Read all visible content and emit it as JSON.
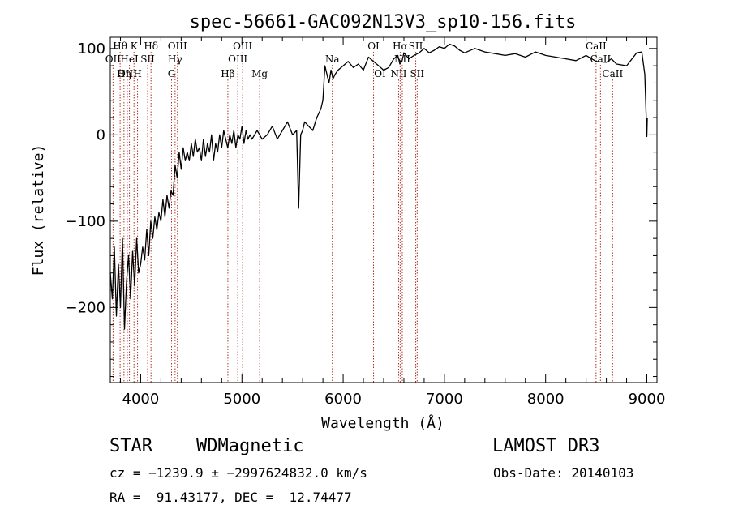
{
  "chart_data": {
    "type": "line",
    "title": "spec-56661-GAC092N13V3_sp10-156.fits",
    "xlabel": "Wavelength (Å)",
    "ylabel": "Flux (relative)",
    "xlim": [
      3700,
      9100
    ],
    "ylim": [
      -287,
      113
    ],
    "xticks": [
      4000,
      5000,
      6000,
      7000,
      8000,
      9000
    ],
    "yticks": [
      -200,
      -100,
      0,
      100
    ],
    "series": [
      {
        "name": "spectrum",
        "x": [
          3700,
          3720,
          3740,
          3760,
          3780,
          3800,
          3820,
          3840,
          3860,
          3880,
          3900,
          3920,
          3940,
          3960,
          3980,
          4000,
          4020,
          4040,
          4060,
          4080,
          4100,
          4120,
          4140,
          4160,
          4180,
          4200,
          4220,
          4240,
          4260,
          4280,
          4300,
          4320,
          4340,
          4360,
          4380,
          4400,
          4420,
          4440,
          4460,
          4480,
          4500,
          4520,
          4540,
          4560,
          4580,
          4600,
          4620,
          4640,
          4660,
          4680,
          4700,
          4720,
          4740,
          4760,
          4780,
          4800,
          4820,
          4840,
          4860,
          4880,
          4900,
          4920,
          4940,
          4960,
          4980,
          5000,
          5020,
          5040,
          5060,
          5080,
          5100,
          5150,
          5200,
          5250,
          5300,
          5350,
          5400,
          5450,
          5500,
          5540,
          5560,
          5580,
          5600,
          5620,
          5660,
          5700,
          5740,
          5780,
          5800,
          5820,
          5840,
          5860,
          5880,
          5900,
          5920,
          5950,
          6000,
          6050,
          6100,
          6150,
          6200,
          6250,
          6300,
          6350,
          6400,
          6450,
          6500,
          6540,
          6560,
          6580,
          6600,
          6650,
          6700,
          6750,
          6800,
          6850,
          6900,
          6950,
          7000,
          7050,
          7100,
          7150,
          7200,
          7300,
          7400,
          7500,
          7600,
          7700,
          7800,
          7900,
          8000,
          8100,
          8200,
          8300,
          8400,
          8500,
          8600,
          8650,
          8700,
          8800,
          8900,
          8950,
          8980,
          9000,
          9005
        ],
        "y": [
          -160,
          -190,
          -130,
          -210,
          -150,
          -200,
          -120,
          -225,
          -170,
          -140,
          -190,
          -135,
          -175,
          -120,
          -160,
          -150,
          -130,
          -145,
          -110,
          -140,
          -100,
          -120,
          -95,
          -110,
          -90,
          -100,
          -75,
          -95,
          -70,
          -85,
          -65,
          -70,
          -35,
          -50,
          -20,
          -40,
          -15,
          -30,
          -20,
          -30,
          -10,
          -25,
          -5,
          -20,
          -15,
          -30,
          -5,
          -25,
          -10,
          -20,
          0,
          -30,
          -10,
          -20,
          0,
          -15,
          5,
          -5,
          -15,
          0,
          -10,
          5,
          -15,
          0,
          -5,
          10,
          -10,
          5,
          -5,
          0,
          -5,
          5,
          -5,
          0,
          10,
          -5,
          5,
          15,
          0,
          5,
          -85,
          0,
          5,
          15,
          10,
          5,
          20,
          30,
          40,
          80,
          70,
          60,
          75,
          65,
          70,
          75,
          80,
          85,
          78,
          82,
          75,
          90,
          85,
          80,
          75,
          78,
          88,
          92,
          82,
          85,
          95,
          88,
          92,
          95,
          100,
          95,
          98,
          102,
          100,
          105,
          103,
          98,
          95,
          100,
          96,
          94,
          92,
          94,
          90,
          96,
          92,
          90,
          88,
          86,
          92,
          85,
          84,
          88,
          82,
          80,
          95,
          96,
          70,
          -2,
          20
        ]
      }
    ],
    "line_markers": [
      {
        "label": "Hθ",
        "x": 3797,
        "row": 1
      },
      {
        "label": "OII",
        "x": 3727,
        "row": 2
      },
      {
        "label": "OIII",
        "x": 3868,
        "row": 3
      },
      {
        "label": "K",
        "x": 3934,
        "row": 1
      },
      {
        "label": "HeI",
        "x": 3889,
        "row": 2
      },
      {
        "label": "Hη",
        "x": 3835,
        "row": 3
      },
      {
        "label": "H",
        "x": 3969,
        "row": 3
      },
      {
        "label": "SII",
        "x": 4069,
        "row": 2
      },
      {
        "label": "Hδ",
        "x": 4102,
        "row": 1
      },
      {
        "label": "OIII",
        "x": 4363,
        "row": 1
      },
      {
        "label": "Hγ",
        "x": 4340,
        "row": 2
      },
      {
        "label": "G",
        "x": 4305,
        "row": 3
      },
      {
        "label": "Hβ",
        "x": 4861,
        "row": 3
      },
      {
        "label": "OIII",
        "x": 5007,
        "row": 1
      },
      {
        "label": "OIII",
        "x": 4959,
        "row": 2
      },
      {
        "label": "Mg",
        "x": 5175,
        "row": 3
      },
      {
        "label": "Na",
        "x": 5893,
        "row": 2
      },
      {
        "label": "OI",
        "x": 6300,
        "row": 1
      },
      {
        "label": "OI",
        "x": 6364,
        "row": 3
      },
      {
        "label": "Hα",
        "x": 6563,
        "row": 1
      },
      {
        "label": "NII",
        "x": 6548,
        "row": 3
      },
      {
        "label": "NII",
        "x": 6584,
        "row": 2
      },
      {
        "label": "SII",
        "x": 6717,
        "row": 1
      },
      {
        "label": "SII",
        "x": 6731,
        "row": 3
      },
      {
        "label": "CaII",
        "x": 8498,
        "row": 1
      },
      {
        "label": "CaII",
        "x": 8542,
        "row": 2
      },
      {
        "label": "CaII",
        "x": 8662,
        "row": 3
      }
    ]
  },
  "info": {
    "object_class": "STAR",
    "subclass": "WDMagnetic",
    "survey": "LAMOST DR3",
    "redshift": "cz = −1239.9 ± −2997624832.0 km/s",
    "obs_date": "Obs-Date: 20140103",
    "coordinates": "RA =  91.43177, DEC =  12.74477"
  },
  "colors": {
    "marker_line": "#b03020",
    "spectrum": "#000000",
    "axis": "#000000"
  }
}
